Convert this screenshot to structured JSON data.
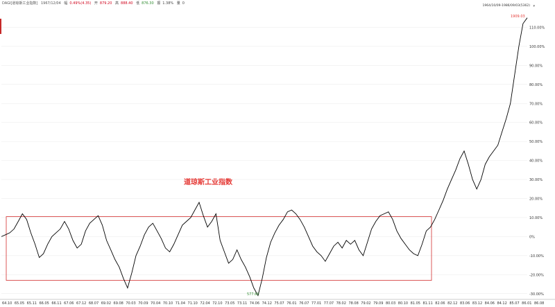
{
  "header": {
    "symbol": "DAGI[道琼斯工业指数]",
    "date": "1967/12/04",
    "change_label": "幅",
    "change_value": "0.49%(4.35)",
    "open_label": "开",
    "open_value": "879.20",
    "high_label": "高",
    "high_value": "888.40",
    "low_label": "低",
    "low_value": "876.30",
    "amp_label": "振",
    "amp_value": "1.38%",
    "vol_label": "量",
    "vol_value": "0"
  },
  "range_label": "1964/10/09-1986/09/03(5362)",
  "colors": {
    "line": "#000000",
    "box": "#d32f2f",
    "annotation": "#e53935",
    "max_label": "#e53935",
    "min_label": "#2e8b2e",
    "grid": "#e8e8e8"
  },
  "chart_data": {
    "type": "line",
    "title": "道琼斯工业指数",
    "xlabel": "",
    "ylabel": "",
    "y_unit": "%",
    "ylim": [
      -33,
      120
    ],
    "y_ticks": [
      110,
      100,
      90,
      80,
      70,
      60,
      50,
      40,
      30,
      20,
      10,
      0,
      -10,
      -20,
      -30
    ],
    "y_tick_labels": [
      "110.00%",
      "100.00%",
      "90.00%",
      "80.00%",
      "70.00%",
      "60.00%",
      "50.00%",
      "40.00%",
      "30.00%",
      "20.00%",
      "10.00%",
      "0%",
      "-10.00%",
      "-20.00%",
      "-30.00%"
    ],
    "x_tick_labels": [
      "64.10",
      "65.05",
      "65.11",
      "66.05",
      "66.11",
      "67.06",
      "67.12",
      "68.07",
      "69.02",
      "69.08",
      "70.03",
      "70.09",
      "70.04",
      "70.10",
      "71.04",
      "71.10",
      "72.04",
      "72.10",
      "73.05",
      "73.11",
      "74.06",
      "74.12",
      "75.07",
      "76.01",
      "76.07",
      "77.01",
      "77.07",
      "78.02",
      "78.08",
      "79.02",
      "79.09",
      "80.03",
      "80.10",
      "81.05",
      "81.11",
      "82.06",
      "82.12",
      "83.06",
      "83.12",
      "84.06",
      "84.12",
      "85.07",
      "86.01",
      "86.08"
    ],
    "grid": true,
    "legend": "none",
    "max_label": "1909.03",
    "min_label": "577.60",
    "box_range_pct": [
      -23,
      10.5
    ],
    "series": [
      {
        "x": [
          0,
          0.008,
          0.016,
          0.024,
          0.032,
          0.04,
          0.048,
          0.056,
          0.064,
          0.072,
          0.08,
          0.088,
          0.096,
          0.104,
          0.112,
          0.12,
          0.128,
          0.136,
          0.144,
          0.152,
          0.16,
          0.168,
          0.176,
          0.184,
          0.192,
          0.2,
          0.208,
          0.216,
          0.224,
          0.232,
          0.24,
          0.248,
          0.256,
          0.264,
          0.272,
          0.28,
          0.288,
          0.296,
          0.304,
          0.312,
          0.32,
          0.328,
          0.336,
          0.344,
          0.352,
          0.36,
          0.368,
          0.376,
          0.384,
          0.392,
          0.4,
          0.408,
          0.416,
          0.424,
          0.432,
          0.44,
          0.448,
          0.456,
          0.464,
          0.472,
          0.48,
          0.488,
          0.496,
          0.504,
          0.512,
          0.52,
          0.528,
          0.536,
          0.544,
          0.552,
          0.56,
          0.568,
          0.576,
          0.584,
          0.592,
          0.6,
          0.608,
          0.616,
          0.624,
          0.632,
          0.64,
          0.648,
          0.656,
          0.664,
          0.672,
          0.68,
          0.688,
          0.696,
          0.704,
          0.712,
          0.72,
          0.728,
          0.736,
          0.744,
          0.752,
          0.76,
          0.768,
          0.776,
          0.784,
          0.792,
          0.8,
          0.808,
          0.816,
          0.824,
          0.832,
          0.84,
          0.848,
          0.856,
          0.864,
          0.872,
          0.88,
          0.888,
          0.896,
          0.904,
          0.912,
          0.92,
          0.928,
          0.936,
          0.944,
          0.952,
          0.96,
          0.968,
          0.976,
          0.984,
          0.992,
          1
        ],
        "values": [
          0,
          1,
          2,
          4,
          8,
          12,
          9,
          2,
          -4,
          -11,
          -9,
          -4,
          0,
          2,
          4,
          8,
          4,
          -2,
          -6,
          -4,
          3,
          7,
          9,
          11,
          6,
          -2,
          -7,
          -12,
          -16,
          -22,
          -27,
          -19,
          -10,
          -5,
          1,
          5,
          7,
          3,
          -1,
          -6,
          -8,
          -4,
          1,
          6,
          8,
          10,
          14,
          18,
          11,
          5,
          8,
          12,
          -2,
          -8,
          -14,
          -12,
          -7,
          -12,
          -16,
          -21,
          -27,
          -31,
          -22,
          -11,
          -3,
          2,
          6,
          9,
          13,
          14,
          12,
          9,
          5,
          0,
          -5,
          -8,
          -10,
          -13,
          -9,
          -5,
          -3,
          -6,
          -2,
          -4,
          -2,
          -7,
          -10,
          -3,
          4,
          8,
          11,
          12,
          13,
          9,
          3,
          -1,
          -4,
          -7,
          -9,
          -10,
          -4,
          3,
          5,
          9,
          14,
          19,
          25,
          30,
          35,
          41,
          45,
          38,
          30,
          25,
          30,
          38,
          42,
          45,
          48,
          55,
          62,
          70,
          85,
          100,
          112,
          115
        ]
      }
    ]
  }
}
